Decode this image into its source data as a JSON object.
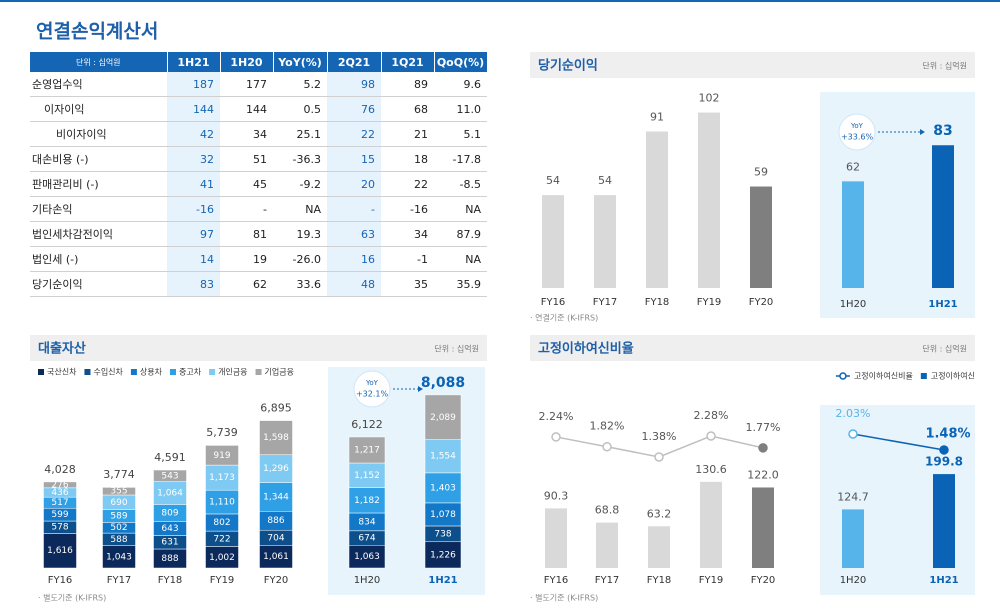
{
  "title": "연결손익계산서",
  "table": {
    "header": [
      "단위 : 십억원",
      "1H21",
      "1H20",
      "YoY(%)",
      "2Q21",
      "1Q21",
      "QoQ(%)"
    ],
    "rows": [
      [
        "순영업수익",
        "187",
        "177",
        "5.2",
        "98",
        "89",
        "9.6"
      ],
      [
        "이자이익",
        "144",
        "144",
        "0.5",
        "76",
        "68",
        "11.0"
      ],
      [
        "비이자이익",
        "42",
        "34",
        "25.1",
        "22",
        "21",
        "5.1"
      ],
      [
        "대손비용 (-)",
        "32",
        "51",
        "-36.3",
        "15",
        "18",
        "-17.8"
      ],
      [
        "판매관리비 (-)",
        "41",
        "45",
        "-9.2",
        "20",
        "22",
        "-8.5"
      ],
      [
        "기타손익",
        "-16",
        "-",
        "NA",
        "-",
        "-16",
        "NA"
      ],
      [
        "법인세차감전이익",
        "97",
        "81",
        "19.3",
        "63",
        "34",
        "87.9"
      ],
      [
        "법인세 (-)",
        "14",
        "19",
        "-26.0",
        "16",
        "-1",
        "NA"
      ],
      [
        "당기순이익",
        "83",
        "62",
        "33.6",
        "48",
        "35",
        "35.9"
      ]
    ]
  },
  "chart_data": [
    {
      "type": "bar",
      "title": "당기순이익",
      "unit": "단위 : 십억원",
      "categories": [
        "FY16",
        "FY17",
        "FY18",
        "FY19",
        "FY20",
        "1H20",
        "1H21"
      ],
      "values": [
        54,
        54,
        91,
        102,
        59,
        62,
        83
      ],
      "colors": [
        "#d9d9d9",
        "#d9d9d9",
        "#d9d9d9",
        "#d9d9d9",
        "#7f7f7f",
        "#56b4ea",
        "#0b63b5"
      ],
      "yoy_label": "YoY",
      "yoy": "+33.6%",
      "footnote": "· 연결기준 (K-IFRS)"
    },
    {
      "type": "stacked_bar",
      "title": "대출자산",
      "unit": "단위 : 십억원",
      "categories": [
        "FY16",
        "FY17",
        "FY18",
        "FY19",
        "FY20",
        "1H20",
        "1H21"
      ],
      "series": [
        {
          "name": "국산신차",
          "color": "#0b2a5b",
          "values": [
            1616,
            1043,
            888,
            1002,
            1061,
            1063,
            1226
          ],
          "value_labels": [
            "1,616",
            "1,043",
            "888",
            "1,002",
            "1,061",
            "1,063",
            "1,226"
          ]
        },
        {
          "name": "수입신차",
          "color": "#0d4f8b",
          "values": [
            578,
            588,
            631,
            722,
            704,
            674,
            738
          ]
        },
        {
          "name": "상용차",
          "color": "#1478c8",
          "values": [
            599,
            502,
            643,
            802,
            886,
            834,
            1078
          ],
          "value_labels": [
            "599",
            "502",
            "643",
            "802",
            "886",
            "834",
            "1,078"
          ]
        },
        {
          "name": "중고차",
          "color": "#2fa0e6",
          "values": [
            517,
            589,
            809,
            1110,
            1344,
            1182,
            1403
          ],
          "value_labels": [
            "517",
            "589",
            "809",
            "1,110",
            "1,344",
            "1,182",
            "1,403"
          ]
        },
        {
          "name": "개인금융",
          "color": "#7fcaf3",
          "values": [
            436,
            690,
            1064,
            1173,
            1296,
            1152,
            1554
          ],
          "value_labels": [
            "436",
            "690",
            "1,064",
            "1,173",
            "1,296",
            "1,152",
            "1,554"
          ]
        },
        {
          "name": "기업금융",
          "color": "#a6a6a6",
          "values": [
            276,
            355,
            543,
            919,
            1598,
            1217,
            2089
          ],
          "value_labels": [
            "276",
            "355",
            "543",
            "919",
            "1,598",
            "1,217",
            "2,089"
          ]
        }
      ],
      "totals": [
        4028,
        3774,
        4591,
        5739,
        6895,
        6122,
        8088
      ],
      "total_labels": [
        "4,028",
        "3,774",
        "4,591",
        "5,739",
        "6,895",
        "6,122",
        "8,088"
      ],
      "yoy_label": "YoY",
      "yoy": "+32.1%",
      "footnote": "· 별도기준 (K-IFRS)"
    },
    {
      "type": "bar_line",
      "title": "고정이하여신비율",
      "unit": "단위 : 십억원",
      "categories": [
        "FY16",
        "FY17",
        "FY18",
        "FY19",
        "FY20",
        "1H20",
        "1H21"
      ],
      "series": [
        {
          "name": "고정이하여신비율",
          "type": "line",
          "color": "#0b63b5",
          "values": [
            2.24,
            1.82,
            1.38,
            2.28,
            1.77,
            2.03,
            1.48
          ],
          "value_labels": [
            "2.24%",
            "1.82%",
            "1.38%",
            "2.28%",
            "1.77%",
            "2.03%",
            "1.48%"
          ],
          "colors": [
            "#bfbfbf",
            "#bfbfbf",
            "#bfbfbf",
            "#bfbfbf",
            "#7f7f7f",
            "#56b4ea",
            "#0b63b5"
          ]
        },
        {
          "name": "고정이하여신",
          "type": "bar",
          "color": "#0b63b5",
          "values": [
            90.3,
            68.8,
            63.2,
            130.6,
            122.0,
            124.7,
            199.8
          ],
          "value_labels": [
            "90.3",
            "68.8",
            "63.2",
            "130.6",
            "122.0",
            "124.7",
            "199.8"
          ],
          "colors": [
            "#d9d9d9",
            "#d9d9d9",
            "#d9d9d9",
            "#d9d9d9",
            "#7f7f7f",
            "#56b4ea",
            "#0b63b5"
          ]
        }
      ],
      "footnote": "· 별도기준 (K-IFRS)"
    }
  ]
}
